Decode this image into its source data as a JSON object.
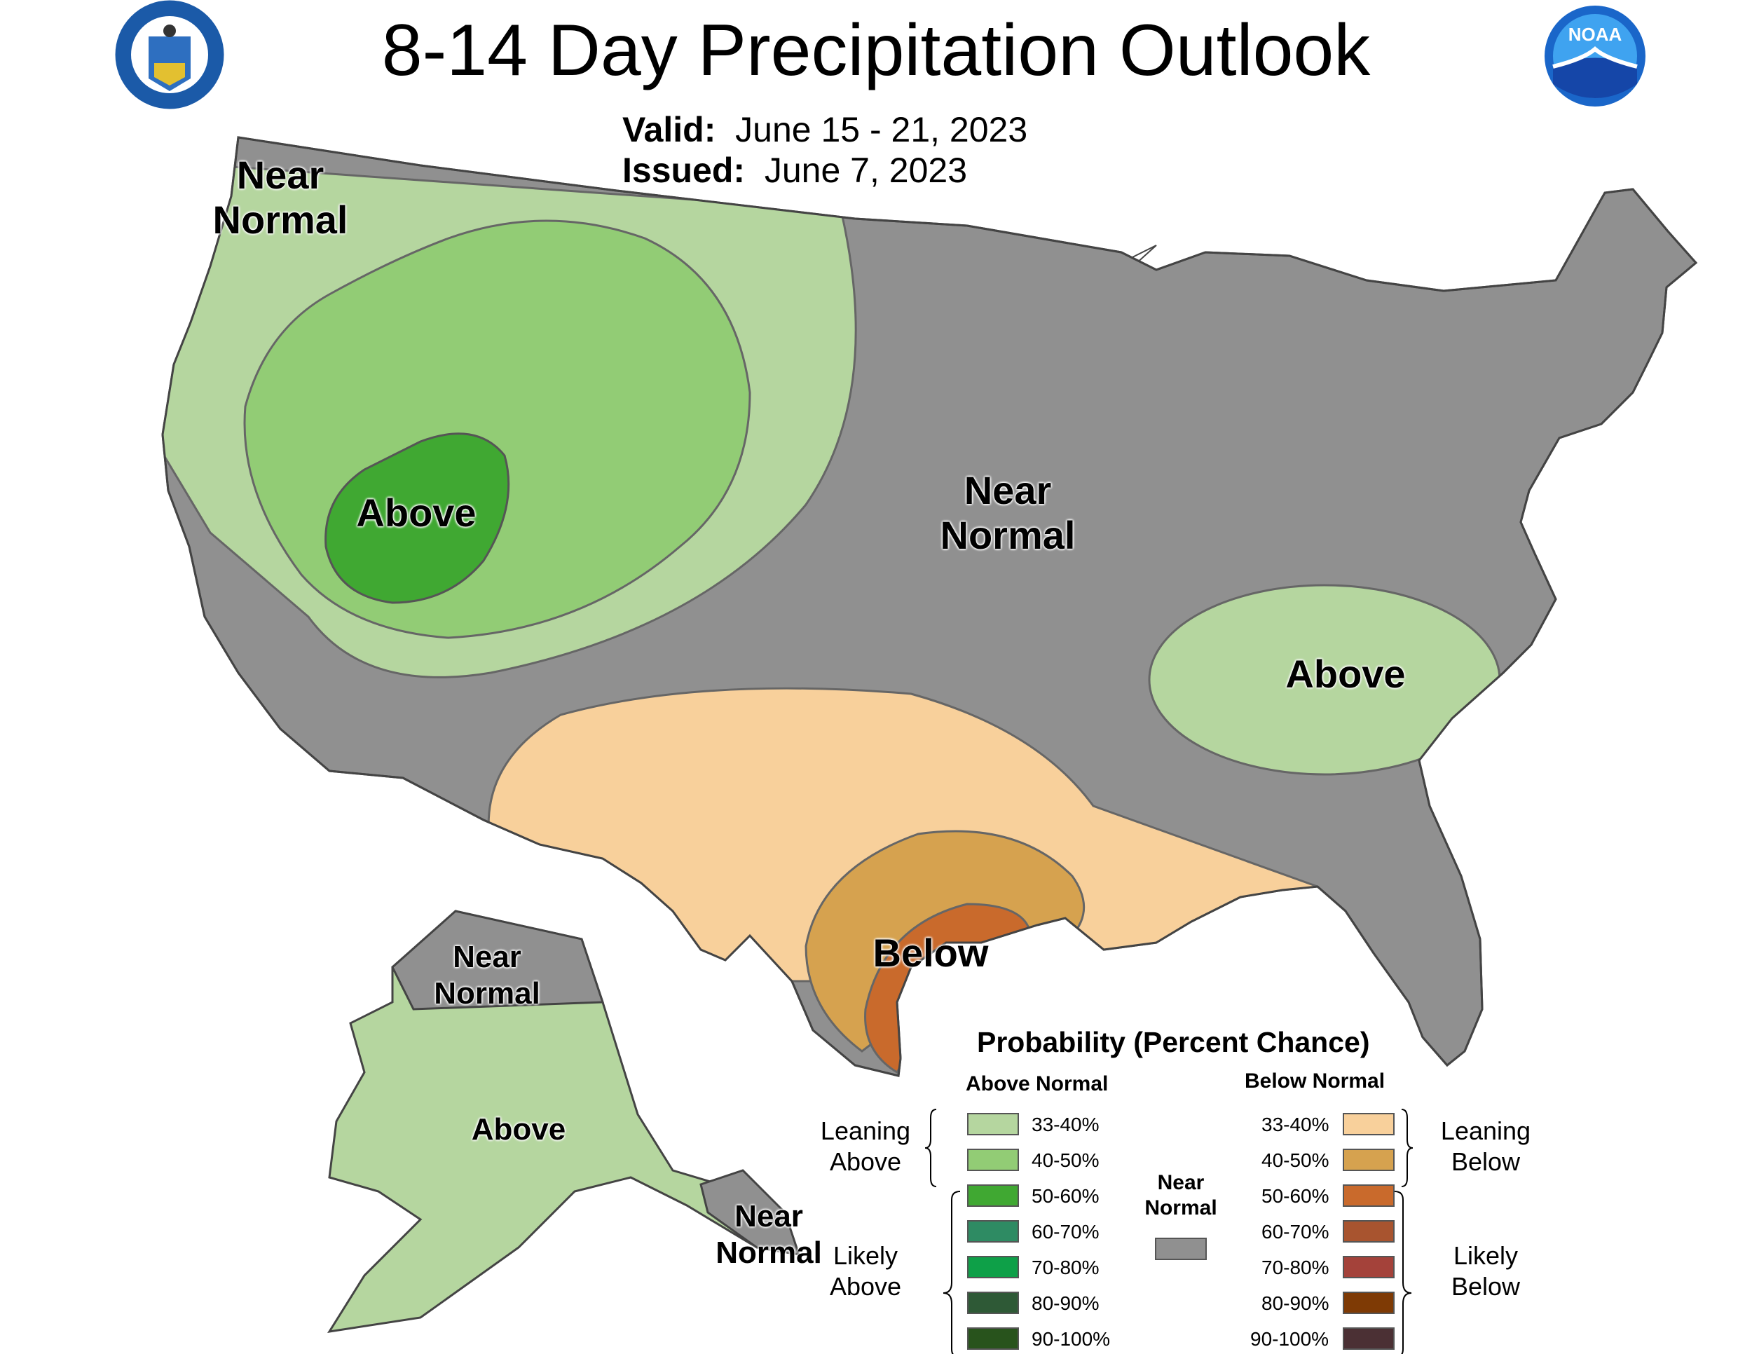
{
  "title": "8-14 Day Precipitation Outlook",
  "valid_label": "Valid:",
  "valid_dates": "June 15 - 21, 2023",
  "issued_label": "Issued:",
  "issued_date": "June 7, 2023",
  "logos": {
    "left": "department-of-commerce-seal",
    "right": "noaa-logo",
    "noaa_text": "NOAA"
  },
  "regions": {
    "northwest": "Near Normal",
    "west_core": "Above",
    "central": "Near Normal",
    "southeast": "Above",
    "texas": "Below",
    "alaska_north": "Near Normal",
    "alaska": "Above",
    "alaska_southeast": "Near Normal"
  },
  "legend": {
    "title": "Probability (Percent Chance)",
    "above_head": "Above Normal",
    "below_head": "Below Normal",
    "near_normal": "Near Normal",
    "leaning_above": "Leaning Above",
    "likely_above": "Likely Above",
    "leaning_below": "Leaning Below",
    "likely_below": "Likely Below",
    "above": [
      {
        "label": "33-40%",
        "color": "#b5d69f"
      },
      {
        "label": "40-50%",
        "color": "#92cc75"
      },
      {
        "label": "50-60%",
        "color": "#40a832"
      },
      {
        "label": "60-70%",
        "color": "#2e8b63"
      },
      {
        "label": "70-80%",
        "color": "#0ea048"
      },
      {
        "label": "80-90%",
        "color": "#2e5936"
      },
      {
        "label": "90-100%",
        "color": "#28531c"
      }
    ],
    "below": [
      {
        "label": "33-40%",
        "color": "#f8d09b"
      },
      {
        "label": "40-50%",
        "color": "#d6a24f"
      },
      {
        "label": "50-60%",
        "color": "#c96a2c"
      },
      {
        "label": "60-70%",
        "color": "#a8542f"
      },
      {
        "label": "70-80%",
        "color": "#a4423a"
      },
      {
        "label": "80-90%",
        "color": "#7e3a05"
      },
      {
        "label": "90-100%",
        "color": "#4b3034"
      }
    ],
    "near_color": "#909090"
  }
}
